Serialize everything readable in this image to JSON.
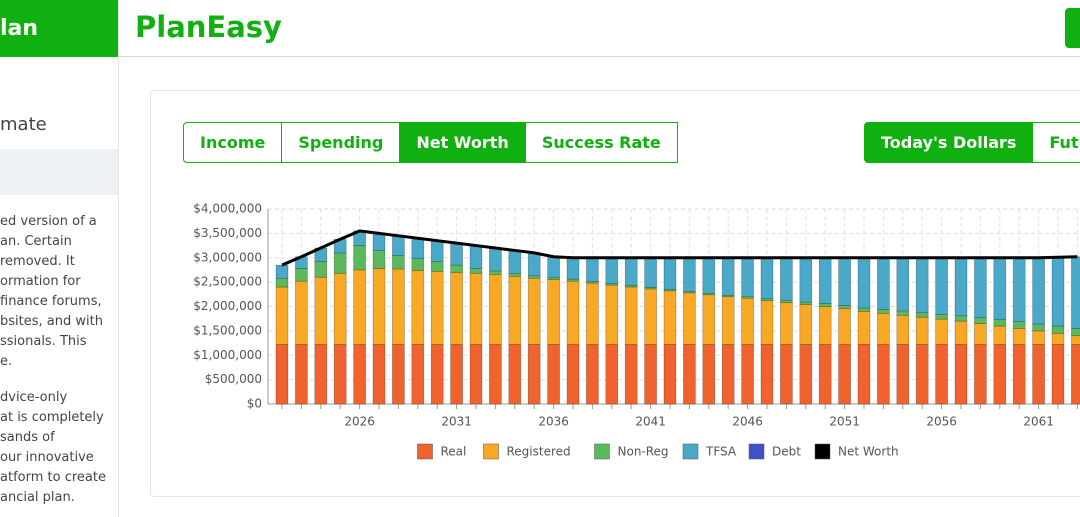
{
  "sidebar": {
    "brand": "lan",
    "heading": "mate",
    "paragraphs": [
      [
        "ed version of a",
        "an. Certain",
        "removed. It",
        "ormation for",
        "finance forums,",
        "bsites, and with",
        "ssionals. This",
        "e."
      ],
      [
        "dvice-only",
        "at is completely",
        "sands of",
        "our innovative",
        "atform to create",
        "ancial plan."
      ]
    ]
  },
  "header": {
    "title": "PlanEasy"
  },
  "tabs": [
    "Income",
    "Spending",
    "Net Worth",
    "Success Rate"
  ],
  "toggle": [
    "Today's Dollars",
    "Future"
  ],
  "chart_data": {
    "type": "bar",
    "stacked": true,
    "grid": true,
    "categories": [
      null,
      null,
      null,
      null,
      "2026",
      null,
      null,
      null,
      null,
      "2031",
      null,
      null,
      null,
      null,
      "2036",
      null,
      null,
      null,
      null,
      "2041",
      null,
      null,
      null,
      null,
      "2046",
      null,
      null,
      null,
      null,
      "2051",
      null,
      null,
      null,
      null,
      "2056",
      null,
      null,
      null,
      null,
      "2061",
      null,
      null
    ],
    "ylim": [
      0,
      4000000
    ],
    "yticks": [
      {
        "value": 0,
        "label": "$0"
      },
      {
        "value": 500000,
        "label": "$500,000"
      },
      {
        "value": 1000000,
        "label": "$1,000,000"
      },
      {
        "value": 1500000,
        "label": "$1,500,000"
      },
      {
        "value": 2000000,
        "label": "$2,000,000"
      },
      {
        "value": 2500000,
        "label": "$2,500,000"
      },
      {
        "value": 3000000,
        "label": "$3,000,000"
      },
      {
        "value": 3500000,
        "label": "$3,500,000"
      },
      {
        "value": 4000000,
        "label": "$4,000,000"
      }
    ],
    "series": [
      {
        "name": "Real",
        "color": "#f0632f",
        "values": [
          1220000,
          1220000,
          1220000,
          1220000,
          1220000,
          1220000,
          1220000,
          1220000,
          1220000,
          1220000,
          1220000,
          1220000,
          1220000,
          1220000,
          1220000,
          1220000,
          1220000,
          1220000,
          1220000,
          1220000,
          1220000,
          1220000,
          1220000,
          1220000,
          1220000,
          1220000,
          1220000,
          1220000,
          1220000,
          1220000,
          1220000,
          1220000,
          1220000,
          1220000,
          1220000,
          1220000,
          1220000,
          1220000,
          1220000,
          1220000,
          1220000,
          1220000
        ]
      },
      {
        "name": "Registered",
        "color": "#f9a825",
        "values": [
          1180000,
          1300000,
          1380000,
          1460000,
          1530000,
          1560000,
          1550000,
          1520000,
          1500000,
          1480000,
          1460000,
          1440000,
          1400000,
          1360000,
          1330000,
          1300000,
          1260000,
          1220000,
          1180000,
          1140000,
          1100000,
          1060000,
          1020000,
          980000,
          950000,
          900000,
          860000,
          820000,
          780000,
          740000,
          680000,
          640000,
          600000,
          560000,
          520000,
          480000,
          430000,
          380000,
          330000,
          280000,
          230000,
          180000
        ]
      },
      {
        "name": "Non-Reg",
        "color": "#5cb85c",
        "values": [
          180000,
          260000,
          320000,
          420000,
          500000,
          370000,
          280000,
          240000,
          200000,
          150000,
          100000,
          70000,
          60000,
          50000,
          50000,
          40000,
          30000,
          30000,
          30000,
          30000,
          30000,
          30000,
          30000,
          30000,
          40000,
          40000,
          50000,
          50000,
          60000,
          60000,
          70000,
          80000,
          90000,
          100000,
          100000,
          110000,
          120000,
          130000,
          140000,
          140000,
          150000,
          150000
        ]
      },
      {
        "name": "TFSA",
        "color": "#4aa8c8",
        "values": [
          270000,
          240000,
          280000,
          280000,
          300000,
          350000,
          400000,
          420000,
          430000,
          450000,
          470000,
          470000,
          470000,
          470000,
          420000,
          440000,
          490000,
          530000,
          570000,
          610000,
          650000,
          690000,
          730000,
          770000,
          790000,
          840000,
          870000,
          910000,
          940000,
          980000,
          1030000,
          1060000,
          1090000,
          1120000,
          1160000,
          1190000,
          1230000,
          1270000,
          1310000,
          1360000,
          1410000,
          1470000
        ]
      },
      {
        "name": "Debt",
        "color": "#3f51c8",
        "values": [
          0,
          0,
          0,
          0,
          0,
          0,
          0,
          0,
          0,
          0,
          0,
          0,
          0,
          0,
          0,
          0,
          0,
          0,
          0,
          0,
          0,
          0,
          0,
          0,
          0,
          0,
          0,
          0,
          0,
          0,
          0,
          0,
          0,
          0,
          0,
          0,
          0,
          0,
          0,
          0,
          0,
          0
        ]
      },
      {
        "name": "Net Worth",
        "color": "#000000",
        "type": "line",
        "values": [
          2850000,
          3020000,
          3200000,
          3380000,
          3550000,
          3500000,
          3450000,
          3400000,
          3350000,
          3300000,
          3250000,
          3200000,
          3150000,
          3100000,
          3020000,
          3000000,
          3000000,
          3000000,
          3000000,
          3000000,
          3000000,
          3000000,
          3000000,
          3000000,
          3000000,
          3000000,
          3000000,
          3000000,
          3000000,
          3000000,
          3000000,
          3000000,
          3000000,
          3000000,
          3000000,
          3000000,
          3000000,
          3000000,
          3000000,
          3000000,
          3010000,
          3020000
        ]
      }
    ]
  }
}
